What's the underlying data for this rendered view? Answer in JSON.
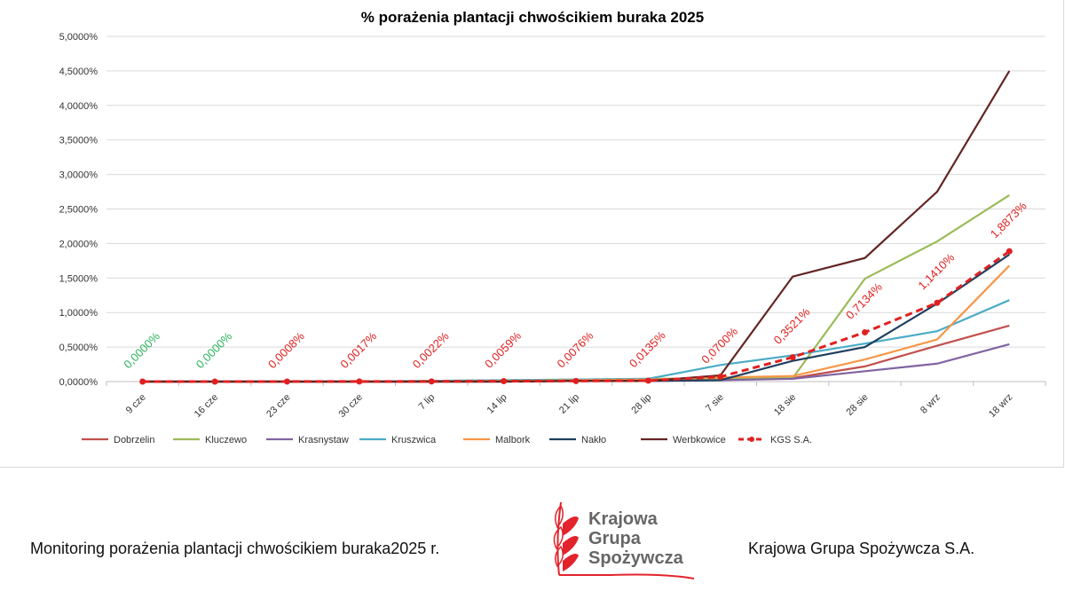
{
  "chart_data": {
    "type": "line",
    "title": "% porażenia plantacji chwościkiem buraka 2025",
    "categories": [
      "9 cze",
      "16 cze",
      "23 cze",
      "30 cze",
      "7 lip",
      "14 lip",
      "21 lip",
      "28 lip",
      "7 sie",
      "18 sie",
      "28 sie",
      "8 wrz",
      "18 wrz"
    ],
    "ylim": [
      0,
      5
    ],
    "yticks": [
      "0,0000%",
      "0,5000%",
      "1,0000%",
      "1,5000%",
      "2,0000%",
      "2,5000%",
      "3,0000%",
      "3,5000%",
      "4,0000%",
      "4,5000%",
      "5,0000%"
    ],
    "grid": true,
    "legend": "bottom",
    "series": [
      {
        "name": "Dobrzelin",
        "color": "#c0504d",
        "values": [
          0,
          0,
          0,
          0,
          0,
          0.01,
          0.01,
          0.02,
          0.03,
          0.05,
          0.22,
          0.52,
          0.81
        ]
      },
      {
        "name": "Kluczewo",
        "color": "#9bbb59",
        "values": [
          0,
          0,
          0,
          0,
          0.01,
          0.02,
          0.03,
          0.04,
          0.05,
          0.05,
          1.49,
          2.03,
          2.7
        ]
      },
      {
        "name": "Krasnystaw",
        "color": "#8064a2",
        "values": [
          0,
          0,
          0,
          0,
          0,
          0,
          0.01,
          0.01,
          0.02,
          0.04,
          0.15,
          0.26,
          0.54
        ]
      },
      {
        "name": "Kruszwica",
        "color": "#4bacc6",
        "values": [
          0,
          0,
          0,
          0,
          0.01,
          0.02,
          0.03,
          0.04,
          0.24,
          0.38,
          0.55,
          0.73,
          1.18
        ]
      },
      {
        "name": "Malbork",
        "color": "#f79646",
        "values": [
          0,
          0,
          0,
          0,
          0,
          0.01,
          0.02,
          0.03,
          0.06,
          0.08,
          0.32,
          0.61,
          1.68
        ]
      },
      {
        "name": "Nakło",
        "color": "#1f3f5f",
        "values": [
          0,
          0,
          0,
          0,
          0,
          0,
          0.01,
          0.01,
          0.02,
          0.3,
          0.5,
          1.13,
          1.84
        ]
      },
      {
        "name": "Werbkowice",
        "color": "#632523",
        "values": [
          0,
          0,
          0,
          0,
          0,
          0,
          0.01,
          0.01,
          0.09,
          1.52,
          1.79,
          2.75,
          4.5
        ]
      },
      {
        "name": "KGS S.A.",
        "color": "#e02020",
        "dashed": true,
        "values": [
          0,
          0,
          0.0008,
          0.0017,
          0.0022,
          0.0059,
          0.0076,
          0.0135,
          0.07,
          0.3521,
          0.7134,
          1.141,
          1.8873
        ],
        "labels": [
          "0,0000%",
          "0,0000%",
          "0,0008%",
          "0,0017%",
          "0,0022%",
          "0,0059%",
          "0,0076%",
          "0,0135%",
          "0,0700%",
          "0,3521%",
          "0,7134%",
          "1,1410%",
          "1,8873%"
        ],
        "label_colors": [
          "#2db35d",
          "#2db35d",
          "#e02020",
          "#e02020",
          "#e02020",
          "#e02020",
          "#e02020",
          "#e02020",
          "#e02020",
          "#e02020",
          "#e02020",
          "#e02020",
          "#e02020"
        ]
      }
    ]
  },
  "footer": {
    "left": "Monitoring porażenia plantacji chwościkiem buraka2025 r.",
    "right": "Krajowa Grupa Spożywcza S.A."
  },
  "logo": {
    "line1": "Krajowa",
    "line2": "Grupa",
    "line3": "Spożywcza",
    "color": "#e3232c"
  }
}
